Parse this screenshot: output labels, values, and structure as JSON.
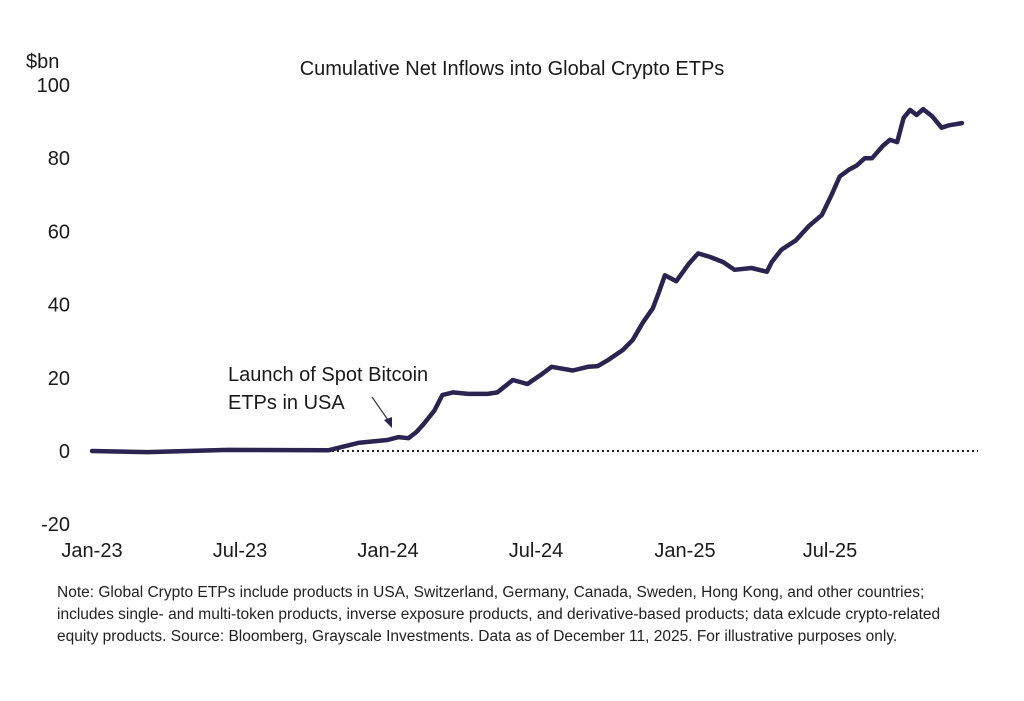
{
  "chart_data": {
    "type": "line",
    "title": "Cumulative Net Inflows into Global Crypto ETPs",
    "ylabel": "$bn",
    "xlabel": "",
    "ylim": [
      -20,
      100
    ],
    "yticks": [
      100,
      80,
      60,
      40,
      20,
      0,
      -20
    ],
    "xticks": [
      "Jan-23",
      "Jul-23",
      "Jan-24",
      "Jul-24",
      "Jan-25",
      "Jul-25"
    ],
    "grid": false,
    "zero_line": "dotted",
    "line_color": "#2b2350",
    "annotation": "Launch of Spot Bitcoin\nETPs in USA",
    "annotation_lines": [
      "Launch of Spot Bitcoin",
      "ETPs in USA"
    ],
    "annotation_date": "2024-01-11",
    "series": [
      {
        "x": [
          "2023-01-01",
          "2023-03-11",
          "2023-06-18",
          "2023-10-20",
          "2023-11-26",
          "2024-01-01",
          "2024-01-15",
          "2024-01-27",
          "2024-02-06",
          "2024-02-15",
          "2024-02-28",
          "2024-03-09",
          "2024-03-22",
          "2024-04-10",
          "2024-05-04",
          "2024-05-16",
          "2024-06-04",
          "2024-06-22",
          "2024-07-10",
          "2024-07-22",
          "2024-08-17",
          "2024-09-05",
          "2024-09-17",
          "2024-09-30",
          "2024-10-18",
          "2024-10-30",
          "2024-11-12",
          "2024-11-24",
          "2024-12-01",
          "2024-12-09",
          "2024-12-23",
          "2025-01-07",
          "2025-01-19",
          "2025-02-03",
          "2025-02-19",
          "2025-03-05",
          "2025-03-26",
          "2025-04-14",
          "2025-04-20",
          "2025-05-02",
          "2025-05-20",
          "2025-06-05",
          "2025-06-21",
          "2025-07-03",
          "2025-07-13",
          "2025-07-24",
          "2025-08-03",
          "2025-08-13",
          "2025-08-22",
          "2025-09-04",
          "2025-09-13",
          "2025-09-22",
          "2025-09-30",
          "2025-10-08",
          "2025-10-16",
          "2025-10-24",
          "2025-11-04",
          "2025-11-16",
          "2025-11-25",
          "2025-12-11"
        ],
        "values": [
          0,
          -0.3,
          0.3,
          0.2,
          2.2,
          3,
          3.8,
          3.5,
          5.2,
          7.4,
          11,
          15.3,
          16,
          15.6,
          15.6,
          16,
          19.4,
          18.3,
          21,
          23,
          22,
          23,
          23.2,
          24.9,
          27.6,
          30.3,
          35.2,
          39,
          43,
          48,
          46.4,
          51,
          54,
          53,
          51.6,
          49.5,
          50,
          49,
          51.6,
          55,
          57.6,
          61.5,
          64.5,
          70,
          75,
          76.8,
          78,
          80,
          80,
          83.3,
          85,
          84.4,
          91,
          93.2,
          91.8,
          93.4,
          91.5,
          88.3,
          89,
          89.6
        ]
      }
    ]
  },
  "note": "Note: Global Crypto ETPs include products in USA, Switzerland, Germany, Canada, Sweden, Hong Kong, and other countries; includes single- and multi-token products, inverse exposure products, and derivative-based products; data exlcude crypto-related equity products. Source: Bloomberg, Grayscale Investments. Data as of December 11, 2025. For illustrative purposes only."
}
